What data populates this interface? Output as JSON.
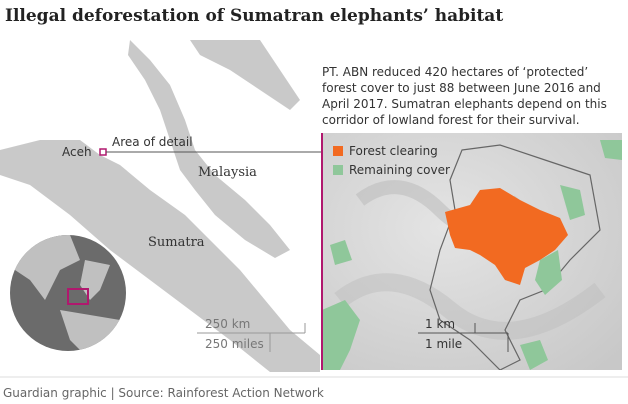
{
  "header": {
    "title": "Illegal deforestation of Sumatran elephants’ habitat"
  },
  "locator_map": {
    "labels": {
      "aceh": "Aceh",
      "area_of_detail": "Area of detail",
      "malaysia": "Malaysia",
      "sumatra": "Sumatra"
    },
    "scale": {
      "km": "250 km",
      "miles": "250 miles"
    }
  },
  "detail_map": {
    "description": [
      "PT. ABN reduced 420 hectares of ‘protected’",
      "forest cover to just 88 between June 2016 and",
      "April 2017. Sumatran elephants depend on this",
      "corridor of lowland forest for their survival."
    ],
    "legend": [
      "Forest clearing",
      "Remaining cover"
    ],
    "scale": {
      "km": "1 km",
      "miles": "1 mile"
    }
  },
  "footer": "Guardian graphic | Source: Rainforest Action Network"
}
